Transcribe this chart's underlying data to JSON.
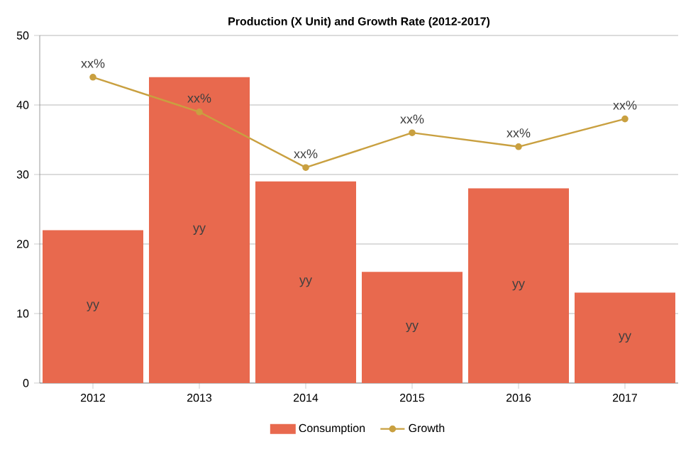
{
  "chart_data": {
    "type": "bar",
    "title": "Production (X Unit) and Growth Rate (2012-2017)",
    "categories": [
      "2012",
      "2013",
      "2014",
      "2015",
      "2016",
      "2017"
    ],
    "series": [
      {
        "name": "Consumption",
        "color": "#e8694e",
        "values": [
          22,
          44,
          29,
          16,
          28,
          13
        ],
        "value_labels": [
          "yy",
          "yy",
          "yy",
          "yy",
          "yy",
          "yy"
        ]
      },
      {
        "name": "Growth",
        "type": "line",
        "color": "#c9a040",
        "marker": "circle",
        "values": [
          44,
          39,
          31,
          36,
          34,
          38
        ],
        "value_labels": [
          "xx%",
          "xx%",
          "xx%",
          "xx%",
          "xx%",
          "xx%"
        ]
      }
    ],
    "ylim": [
      0,
      50
    ],
    "yticks": [
      0,
      10,
      20,
      30,
      40,
      50
    ],
    "grid": "y",
    "legend": "bottom"
  }
}
